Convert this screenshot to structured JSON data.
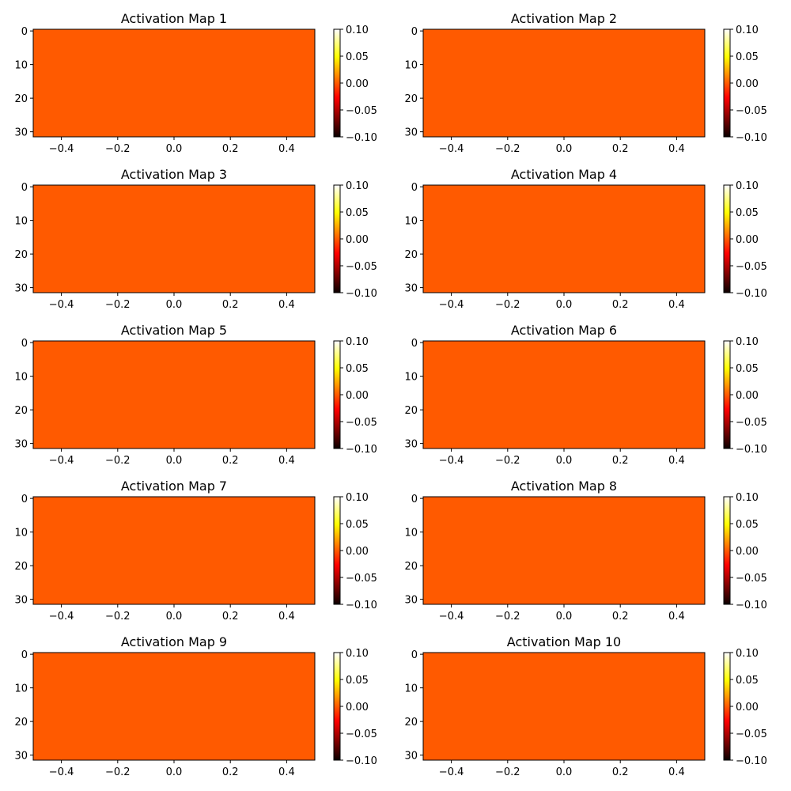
{
  "chart_data": {
    "type": "heatmap",
    "x_ticks": [
      "−0.4",
      "−0.2",
      "0.0",
      "0.2",
      "0.4"
    ],
    "x_tick_values": [
      -0.4,
      -0.2,
      0.0,
      0.2,
      0.4
    ],
    "xlim": [
      -0.5,
      0.5
    ],
    "y_ticks": [
      "0",
      "10",
      "20",
      "30"
    ],
    "y_tick_values": [
      0,
      10,
      20,
      30
    ],
    "ylim": [
      31.5,
      -0.5
    ],
    "colorbar": {
      "colormap": "hot",
      "ticks": [
        "0.10",
        "0.05",
        "0.00",
        "−0.05",
        "−0.10"
      ],
      "tick_values": [
        0.1,
        0.05,
        0.0,
        -0.05,
        -0.1
      ],
      "range": [
        -0.1,
        0.1
      ]
    },
    "fill_color": "#ff5a00",
    "panels": [
      {
        "title": "Activation Map 1",
        "value": 0.0
      },
      {
        "title": "Activation Map 2",
        "value": 0.0
      },
      {
        "title": "Activation Map 3",
        "value": 0.0
      },
      {
        "title": "Activation Map 4",
        "value": 0.0
      },
      {
        "title": "Activation Map 5",
        "value": 0.0
      },
      {
        "title": "Activation Map 6",
        "value": 0.0
      },
      {
        "title": "Activation Map 7",
        "value": 0.0
      },
      {
        "title": "Activation Map 8",
        "value": 0.0
      },
      {
        "title": "Activation Map 9",
        "value": 0.0
      },
      {
        "title": "Activation Map 10",
        "value": 0.0
      }
    ]
  }
}
